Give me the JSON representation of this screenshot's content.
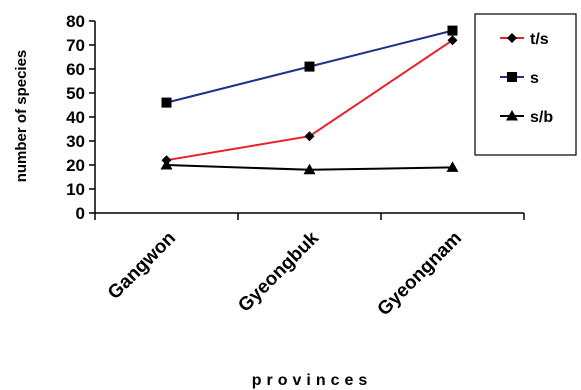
{
  "chart_data": {
    "type": "line",
    "categories": [
      "Gangwon",
      "Gyeongbuk",
      "Gyeongnam"
    ],
    "series": [
      {
        "name": "t/s",
        "values": [
          22,
          32,
          72
        ],
        "color": "#e8202a",
        "marker": "diamond"
      },
      {
        "name": "s",
        "values": [
          46,
          61,
          76
        ],
        "color": "#1f2f8a",
        "marker": "square"
      },
      {
        "name": "s/b",
        "values": [
          20,
          18,
          19
        ],
        "color": "#000000",
        "marker": "triangle"
      }
    ],
    "xlabel": "provinces",
    "ylabel": "number of species",
    "ylim": [
      0,
      80
    ],
    "yticks": [
      0,
      10,
      20,
      30,
      40,
      50,
      60,
      70,
      80
    ],
    "grid": false,
    "legend_position": "right"
  }
}
